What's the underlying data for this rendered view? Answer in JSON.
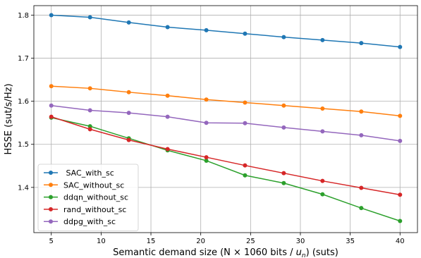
{
  "chart_data": {
    "type": "line",
    "title": "",
    "xlabel": "Semantic demand size (N × 1060 bits / u_n) (suts)",
    "ylabel": "HSSE (sut/s/Hz)",
    "xlim": [
      3.25,
      41.75
    ],
    "ylim": [
      1.295,
      1.822
    ],
    "xticks": [
      5,
      10,
      15,
      20,
      25,
      30,
      35,
      40
    ],
    "yticks": [
      1.4,
      1.5,
      1.6,
      1.7,
      1.8
    ],
    "grid": true,
    "legend_position": "lower-left",
    "x": [
      5,
      8.89,
      12.78,
      16.67,
      20.56,
      24.44,
      28.33,
      32.22,
      36.11,
      40
    ],
    "series": [
      {
        "name": " SAC_with_sc",
        "color": "#1f77b4",
        "values": [
          1.8,
          1.795,
          1.783,
          1.772,
          1.765,
          1.757,
          1.749,
          1.742,
          1.735,
          1.726
        ]
      },
      {
        "name": "SAC_without_sc",
        "color": "#ff7f0e",
        "values": [
          1.635,
          1.63,
          1.621,
          1.613,
          1.604,
          1.597,
          1.59,
          1.583,
          1.576,
          1.566
        ]
      },
      {
        "name": "ddqn_without_sc",
        "color": "#2ca02c",
        "values": [
          1.562,
          1.542,
          1.514,
          1.486,
          1.462,
          1.428,
          1.41,
          1.384,
          1.352,
          1.322
        ]
      },
      {
        "name": "rand_without_sc",
        "color": "#d62728",
        "values": [
          1.564,
          1.535,
          1.51,
          1.489,
          1.47,
          1.451,
          1.433,
          1.415,
          1.399,
          1.383
        ]
      },
      {
        "name": "ddpg_with_sc",
        "color": "#9467bd",
        "values": [
          1.59,
          1.579,
          1.573,
          1.564,
          1.55,
          1.549,
          1.539,
          1.53,
          1.521,
          1.508
        ]
      }
    ]
  }
}
